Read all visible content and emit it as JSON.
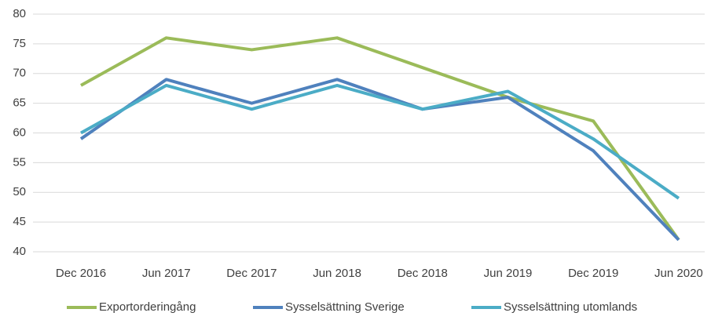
{
  "chart_data": {
    "type": "line",
    "categories": [
      "Dec 2016",
      "Jun 2017",
      "Dec 2017",
      "Jun 2018",
      "Dec 2018",
      "Jun 2019",
      "Dec 2019",
      "Jun 2020"
    ],
    "series": [
      {
        "name": "Exportorderingång",
        "color": "#9bbb59",
        "values": [
          68,
          76,
          74,
          76,
          71,
          66,
          62,
          42
        ]
      },
      {
        "name": "Sysselsättning Sverige",
        "color": "#4f81bd",
        "values": [
          59,
          69,
          65,
          69,
          64,
          66,
          57,
          42
        ]
      },
      {
        "name": "Sysselsättning utomlands",
        "color": "#4bacc6",
        "values": [
          60,
          68,
          64,
          68,
          64,
          67,
          59,
          49
        ]
      }
    ],
    "ylim": [
      40,
      80
    ],
    "yticks": [
      40,
      45,
      50,
      55,
      60,
      65,
      70,
      75,
      80
    ],
    "grid": true,
    "legend": "bottom"
  }
}
